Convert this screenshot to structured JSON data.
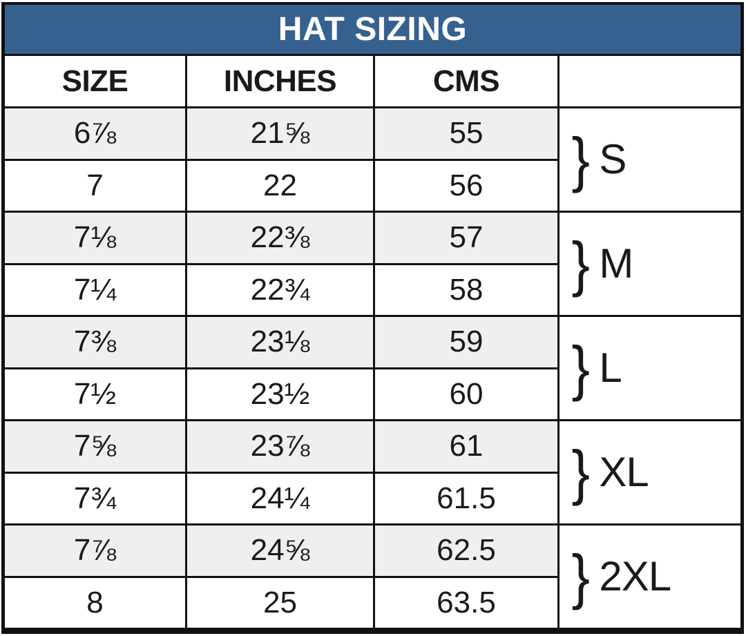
{
  "title": "HAT SIZING",
  "columns": {
    "size": "SIZE",
    "inches": "INCHES",
    "cms": "CMS",
    "group": ""
  },
  "rows": [
    {
      "size": "6⅞",
      "inches": "21⅝",
      "cms": "55"
    },
    {
      "size": "7",
      "inches": "22",
      "cms": "56"
    },
    {
      "size": "7⅛",
      "inches": "22⅜",
      "cms": "57"
    },
    {
      "size": "7¼",
      "inches": "22¾",
      "cms": "58"
    },
    {
      "size": "7⅜",
      "inches": "23⅛",
      "cms": "59"
    },
    {
      "size": "7½",
      "inches": "23½",
      "cms": "60"
    },
    {
      "size": "7⅝",
      "inches": "23⅞",
      "cms": "61"
    },
    {
      "size": "7¾",
      "inches": "24¼",
      "cms": "61.5"
    },
    {
      "size": "7⅞",
      "inches": "24⅝",
      "cms": "62.5"
    },
    {
      "size": "8",
      "inches": "25",
      "cms": "63.5"
    }
  ],
  "groups": [
    {
      "brace": "}",
      "label": "S"
    },
    {
      "brace": "}",
      "label": "M"
    },
    {
      "brace": "}",
      "label": "L"
    },
    {
      "brace": "}",
      "label": "XL"
    },
    {
      "brace": "}",
      "label": "2XL"
    }
  ],
  "colors": {
    "title_bg": "#36618f",
    "title_text": "#ffffff",
    "shaded_row": "#f0efef",
    "border": "#111111",
    "text": "#1a1a1a"
  }
}
